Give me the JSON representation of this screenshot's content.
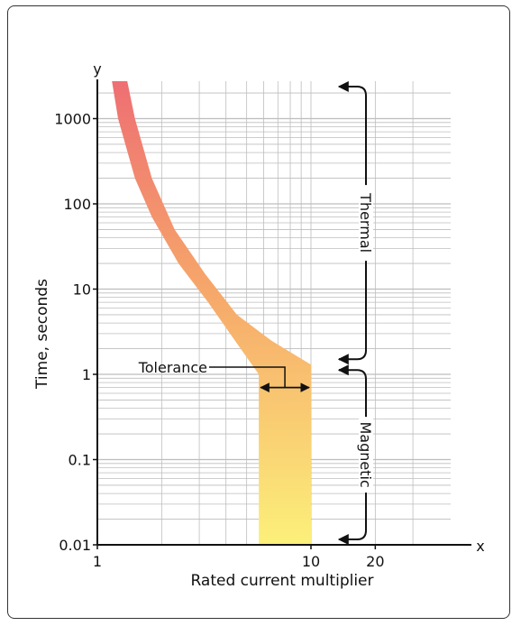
{
  "chart_data": {
    "type": "area",
    "title": "",
    "xlabel": "Rated current multiplier",
    "ylabel": "Time, seconds",
    "x_axis_letter": "x",
    "y_axis_letter": "y",
    "x_scale": "log",
    "y_scale": "log",
    "xlim": [
      1,
      35
    ],
    "ylim": [
      0.01,
      3000
    ],
    "x_ticks": [
      {
        "value": 1,
        "label": "1"
      },
      {
        "value": 10,
        "label": "10"
      },
      {
        "value": 20,
        "label": "20"
      }
    ],
    "y_ticks": [
      {
        "value": 1000,
        "label": "1000"
      },
      {
        "value": 100,
        "label": "100"
      },
      {
        "value": 10,
        "label": "10"
      },
      {
        "value": 1,
        "label": "1"
      },
      {
        "value": 0.1,
        "label": "0.1"
      },
      {
        "value": 0.01,
        "label": "0.01"
      }
    ],
    "grid": true,
    "band": {
      "upper": [
        {
          "x": 1.38,
          "y": 3000
        },
        {
          "x": 1.5,
          "y": 1000
        },
        {
          "x": 1.8,
          "y": 200
        },
        {
          "x": 2.3,
          "y": 50
        },
        {
          "x": 3.2,
          "y": 15
        },
        {
          "x": 4.5,
          "y": 5
        },
        {
          "x": 6.5,
          "y": 2.5
        },
        {
          "x": 10,
          "y": 1.3
        },
        {
          "x": 10,
          "y": 0.01
        }
      ],
      "lower": [
        {
          "x": 5.7,
          "y": 0.01
        },
        {
          "x": 5.7,
          "y": 1
        },
        {
          "x": 4.4,
          "y": 2.5
        },
        {
          "x": 3.3,
          "y": 7
        },
        {
          "x": 2.4,
          "y": 20
        },
        {
          "x": 1.8,
          "y": 70
        },
        {
          "x": 1.5,
          "y": 200
        },
        {
          "x": 1.25,
          "y": 1000
        },
        {
          "x": 1.17,
          "y": 3000
        }
      ]
    },
    "annotations": [
      {
        "label": "Tolerance",
        "type": "double-arrow",
        "x_from": 5.7,
        "x_to": 10,
        "y": 0.7
      },
      {
        "label": "Thermal",
        "type": "bracket",
        "y_from": 3000,
        "y_to": 1.3
      },
      {
        "label": "Magnetic",
        "type": "bracket",
        "y_from": 1.3,
        "y_to": 0.01
      }
    ],
    "colors": {
      "band_top": "#ee6f73",
      "band_mid": "#f6a76a",
      "band_bottom": "#fcf07a",
      "grid": "#bdbdbd",
      "axis": "#111111"
    }
  }
}
